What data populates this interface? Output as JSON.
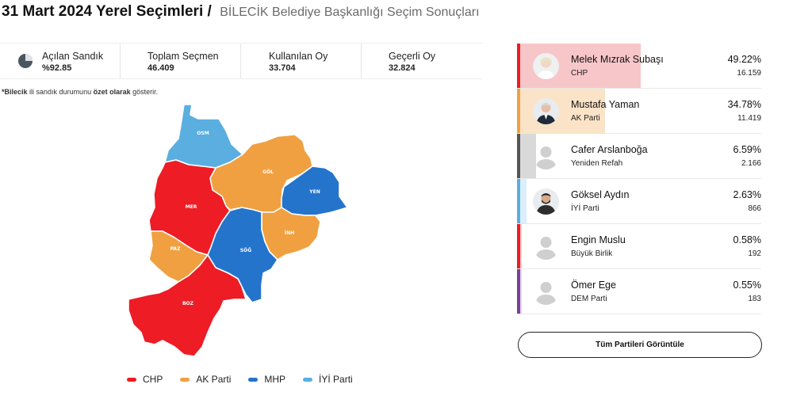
{
  "header": {
    "title": "31 Mart 2024 Yerel Seçimleri /",
    "subtitle": "BİLECİK Belediye Başkanlığı Seçim Sonuçları"
  },
  "stats": [
    {
      "label": "Açılan Sandık",
      "value": "%92.85",
      "icon": "pie-chart-icon"
    },
    {
      "label": "Toplam Seçmen",
      "value": "46.409"
    },
    {
      "label": "Kullanılan Oy",
      "value": "33.704"
    },
    {
      "label": "Geçerli Oy",
      "value": "32.824"
    }
  ],
  "note": {
    "city": "*Bilecik",
    "part1": " ili sandık durumunu ",
    "emph": "özet olarak",
    "part2": " gösterir."
  },
  "map": {
    "districts": [
      {
        "code": "OSM",
        "party": "İYİ Parti"
      },
      {
        "code": "GÖL",
        "party": "AK Parti"
      },
      {
        "code": "YEN",
        "party": "MHP"
      },
      {
        "code": "MER",
        "party": "CHP"
      },
      {
        "code": "İNH",
        "party": "AK Parti"
      },
      {
        "code": "SÖĞ",
        "party": "MHP"
      },
      {
        "code": "PAZ",
        "party": "AK Parti"
      },
      {
        "code": "BOZ",
        "party": "CHP"
      }
    ]
  },
  "legend": [
    {
      "label": "CHP",
      "color": "#ee1c25"
    },
    {
      "label": "AK Parti",
      "color": "#f0a040"
    },
    {
      "label": "MHP",
      "color": "#2474cc"
    },
    {
      "label": "İYİ Parti",
      "color": "#5aaee0"
    }
  ],
  "colors": {
    "chp": "#ee1c25",
    "akp": "#f0a040",
    "mhp": "#2474cc",
    "iyi": "#5aaee0"
  },
  "candidates": [
    {
      "name": "Melek Mızrak Subaşı",
      "party": "CHP",
      "percent": "49.22%",
      "share": 49.22,
      "votes": "16.159",
      "stripe": "#ee1c25",
      "bar": "#f7c6c8",
      "avatar": "photo"
    },
    {
      "name": "Mustafa Yaman",
      "party": "AK Parti",
      "percent": "34.78%",
      "share": 34.78,
      "votes": "11.419",
      "stripe": "#f0a040",
      "bar": "#fbe3c7",
      "avatar": "photo"
    },
    {
      "name": "Cafer Arslanboğa",
      "party": "Yeniden Refah",
      "percent": "6.59%",
      "share": 6.59,
      "votes": "2.166",
      "stripe": "#555555",
      "bar": "#d9d9d9",
      "avatar": "placeholder"
    },
    {
      "name": "Göksel Aydın",
      "party": "İYİ Parti",
      "percent": "2.63%",
      "share": 2.63,
      "votes": "866",
      "stripe": "#5aaee0",
      "bar": "#dbeef9",
      "avatar": "photo"
    },
    {
      "name": "Engin Muslu",
      "party": "Büyük Birlik",
      "percent": "0.58%",
      "share": 0.58,
      "votes": "192",
      "stripe": "#ee1c25",
      "bar": "#f7c6c8",
      "avatar": "placeholder"
    },
    {
      "name": "Ömer Ege",
      "party": "DEM Parti",
      "percent": "0.55%",
      "share": 0.55,
      "votes": "183",
      "stripe": "#7b3f98",
      "bar": "#e5d4ee",
      "avatar": "placeholder"
    }
  ],
  "buttons": {
    "all_parties": "Tüm Partileri Görüntüle"
  }
}
